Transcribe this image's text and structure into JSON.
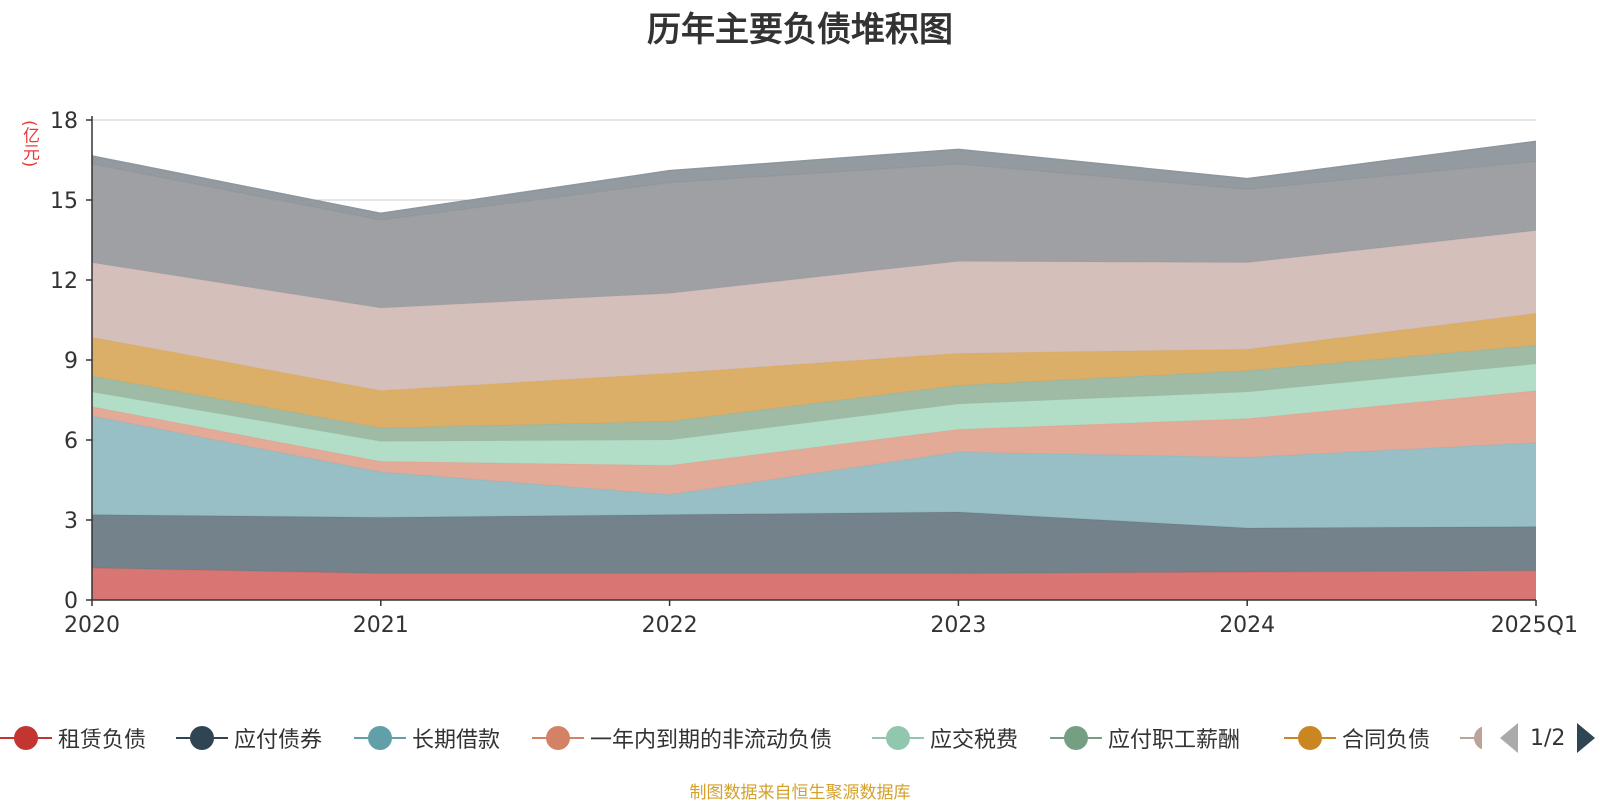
{
  "chart_data": {
    "type": "area",
    "stacked": true,
    "title": "历年主要负债堆积图",
    "unit": "(亿元)",
    "categories": [
      "2020",
      "2021",
      "2022",
      "2023",
      "2024",
      "2025Q1"
    ],
    "y_ticks": [
      "0",
      "3",
      "6",
      "9",
      "12",
      "15",
      "18"
    ],
    "ylim": [
      0,
      18
    ],
    "grid": true,
    "series": [
      {
        "name": "租赁负债",
        "color": "#d56f6c",
        "legend_color": "#c23531",
        "values": [
          1.2,
          1.0,
          1.0,
          1.0,
          1.05,
          1.1
        ]
      },
      {
        "name": "应付债券",
        "color": "#6d7b86",
        "legend_color": "#2f4554",
        "values": [
          2.0,
          2.1,
          2.2,
          2.3,
          1.65,
          1.65
        ]
      },
      {
        "name": "长期借款",
        "color": "#91bcc2",
        "legend_color": "#61a0a8",
        "values": [
          3.7,
          1.7,
          0.75,
          2.25,
          2.65,
          3.15
        ]
      },
      {
        "name": "一年内到期的非流动负债",
        "color": "#e1a592",
        "legend_color": "#d48265",
        "values": [
          0.35,
          0.4,
          1.1,
          0.85,
          1.45,
          1.95
        ]
      },
      {
        "name": "应交税费",
        "color": "#aedcc5",
        "legend_color": "#91c7ae",
        "values": [
          0.55,
          0.75,
          0.95,
          0.95,
          1.0,
          1.0
        ]
      },
      {
        "name": "应付职工薪酬",
        "color": "#9bb7a0",
        "legend_color": "#749f83",
        "values": [
          0.6,
          0.5,
          0.7,
          0.7,
          0.8,
          0.7
        ]
      },
      {
        "name": "合同负债",
        "color": "#daab61",
        "legend_color": "#ca8622",
        "values": [
          1.45,
          1.4,
          1.8,
          1.2,
          0.8,
          1.2
        ]
      },
      {
        "name": "",
        "color": "#d2bcb6",
        "legend_color": "#bda29a",
        "values": [
          2.8,
          3.1,
          3.0,
          3.45,
          3.25,
          3.1
        ]
      },
      {
        "name": "",
        "color": "#9a9b9f",
        "legend_color": "#6e7074",
        "values": [
          3.7,
          3.3,
          4.15,
          3.65,
          2.75,
          2.6
        ]
      },
      {
        "name": "",
        "color": "#8d969c",
        "legend_color": "#546570",
        "values": [
          0.3,
          0.25,
          0.45,
          0.55,
          0.4,
          0.75
        ]
      }
    ]
  },
  "legend": {
    "items": [
      "租赁负债",
      "应付债券",
      "长期借款",
      "一年内到期的非流动负债",
      "应交税费",
      "应付职工薪酬",
      "合同负债"
    ],
    "page_indicator": "1/2"
  },
  "footer": {
    "source": "制图数据来自恒生聚源数据库"
  }
}
